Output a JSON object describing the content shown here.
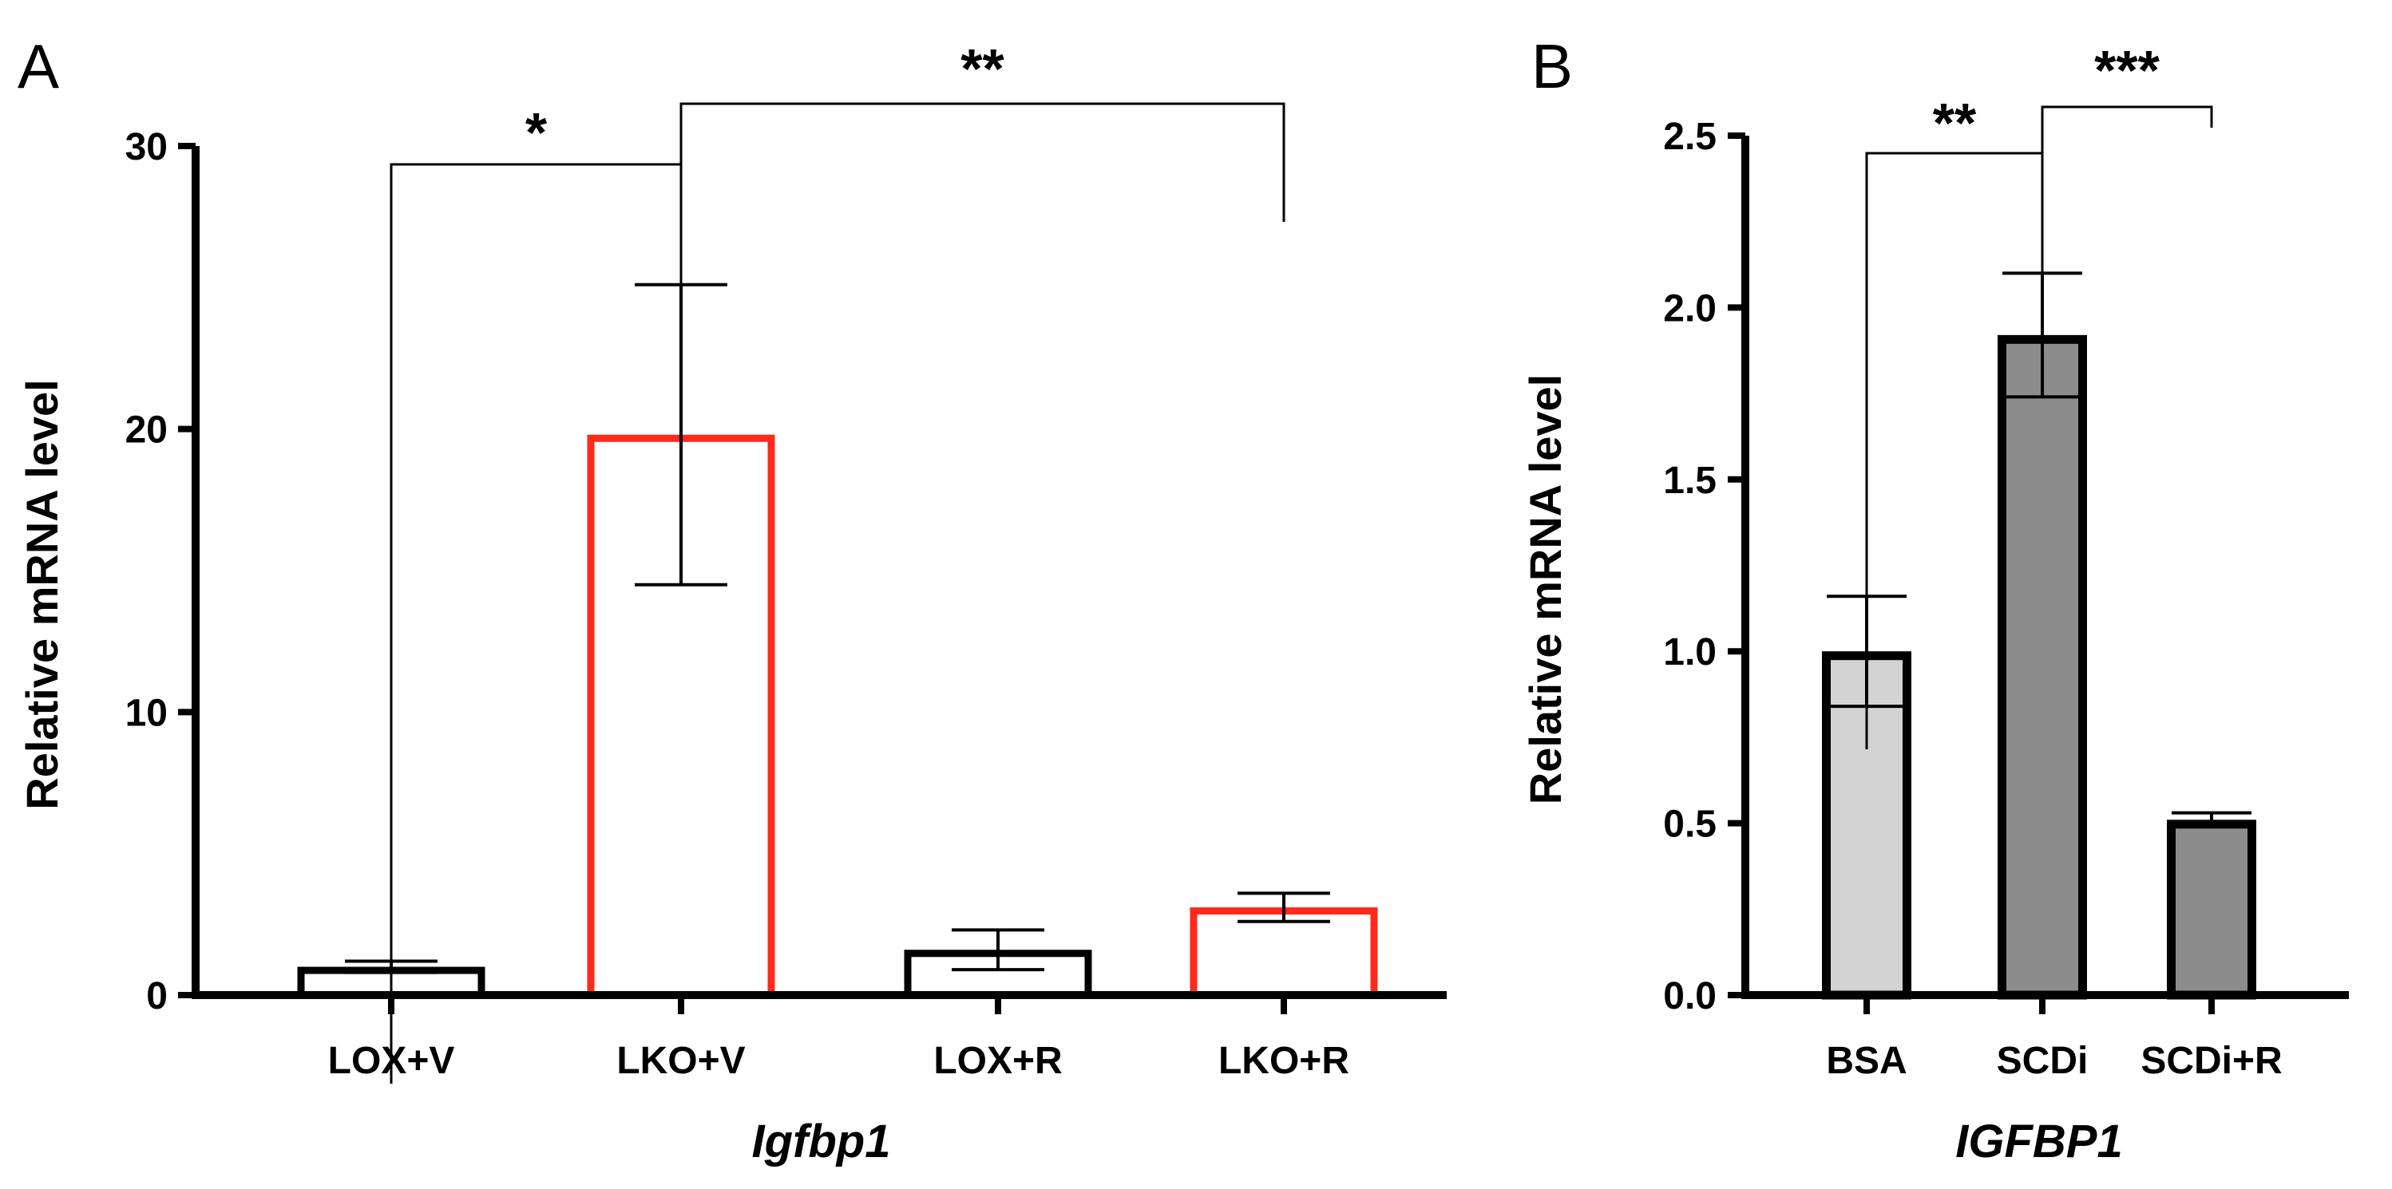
{
  "panels": {
    "a": {
      "label": "A"
    },
    "b": {
      "label": "B"
    }
  },
  "chart_data": [
    {
      "type": "bar",
      "panel": "A",
      "categories": [
        "LOX+V",
        "LKO+V",
        "LOX+R",
        "LKO+R"
      ],
      "values": [
        1.0,
        19.8,
        1.6,
        3.1
      ],
      "errors": [
        0.2,
        5.3,
        0.7,
        0.5
      ],
      "bar_colors": [
        "#000000",
        "#ff2a1a",
        "#000000",
        "#ff2a1a"
      ],
      "bar_fill": "#ffffff",
      "xlabel": "Igfbp1",
      "ylabel": "Relative mRNA level",
      "ylim": [
        0,
        30
      ],
      "yticks": [
        0,
        10,
        20,
        30
      ],
      "significance": [
        {
          "from": "LOX+V",
          "to": "LKO+V",
          "label": "*"
        },
        {
          "from": "LKO+V",
          "to": "LKO+R",
          "label": "**"
        }
      ]
    },
    {
      "type": "bar",
      "panel": "B",
      "categories": [
        "BSA",
        "SCDi",
        "SCDi+R"
      ],
      "values": [
        1.0,
        1.92,
        0.51
      ],
      "errors": [
        0.16,
        0.18,
        0.02
      ],
      "bar_fills": [
        "#d3d3d3",
        "#8c8c8c",
        "#8c8c8c"
      ],
      "bar_stroke": "#000000",
      "xlabel": "IGFBP1",
      "ylabel": "Relative mRNA level",
      "ylim": [
        0,
        2.5
      ],
      "yticks": [
        "0.0",
        "0.5",
        "1.0",
        "1.5",
        "2.0",
        "2.5"
      ],
      "significance": [
        {
          "from": "BSA",
          "to": "SCDi",
          "label": "**"
        },
        {
          "from": "SCDi",
          "to": "SCDi+R",
          "label": "***"
        }
      ]
    }
  ]
}
